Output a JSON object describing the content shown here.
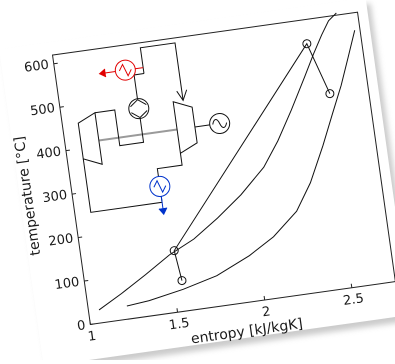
{
  "chart_data": {
    "type": "line",
    "xlabel": "entropy [kJ/kgK]",
    "ylabel": "temperature [°C]",
    "xlim": [
      1,
      2.75
    ],
    "ylim": [
      0,
      620
    ],
    "grid": false,
    "x_ticks": [
      1,
      1.5,
      2,
      2.5
    ],
    "x_tick_labels": [
      "1",
      "1.5",
      "2",
      "2.5"
    ],
    "y_ticks": [
      0,
      100,
      200,
      300,
      400,
      500,
      600
    ],
    "y_tick_labels": [
      "0",
      "100",
      "200",
      "300",
      "400",
      "500",
      "600"
    ],
    "series": [
      {
        "x": [
          1.06,
          1.2,
          1.35,
          1.5,
          1.65,
          1.8,
          1.95,
          2.1,
          2.2,
          2.3,
          2.4,
          2.47,
          2.53,
          2.58,
          2.63
        ],
        "y": [
          30,
          60,
          95,
          132,
          160,
          200,
          245,
          300,
          355,
          420,
          490,
          540,
          580,
          610,
          625
        ]
      },
      {
        "x": [
          1.22,
          1.35,
          1.55,
          1.75,
          1.95,
          2.1,
          2.25,
          2.35,
          2.45,
          2.53,
          2.6,
          2.66,
          2.72
        ],
        "y": [
          30,
          35,
          50,
          70,
          105,
          140,
          190,
          250,
          330,
          400,
          460,
          520,
          580
        ]
      },
      {
        "x": [
          1.55,
          1.53,
          2.44,
          2.53
        ],
        "y": [
          70,
          140,
          565,
          445
        ]
      }
    ],
    "points": [
      {
        "x": 1.53,
        "y": 140
      },
      {
        "x": 1.55,
        "y": 70
      },
      {
        "x": 2.44,
        "y": 565
      },
      {
        "x": 2.53,
        "y": 445
      }
    ],
    "colors": {
      "hot": "#e00000",
      "cold": "#0033cc",
      "line": "#111111",
      "shaft": "#888888"
    },
    "inset_icons": [
      "heater-icon",
      "pump-icon",
      "turbine-icon",
      "compressor-icon",
      "generator-icon",
      "cooler-icon"
    ]
  }
}
